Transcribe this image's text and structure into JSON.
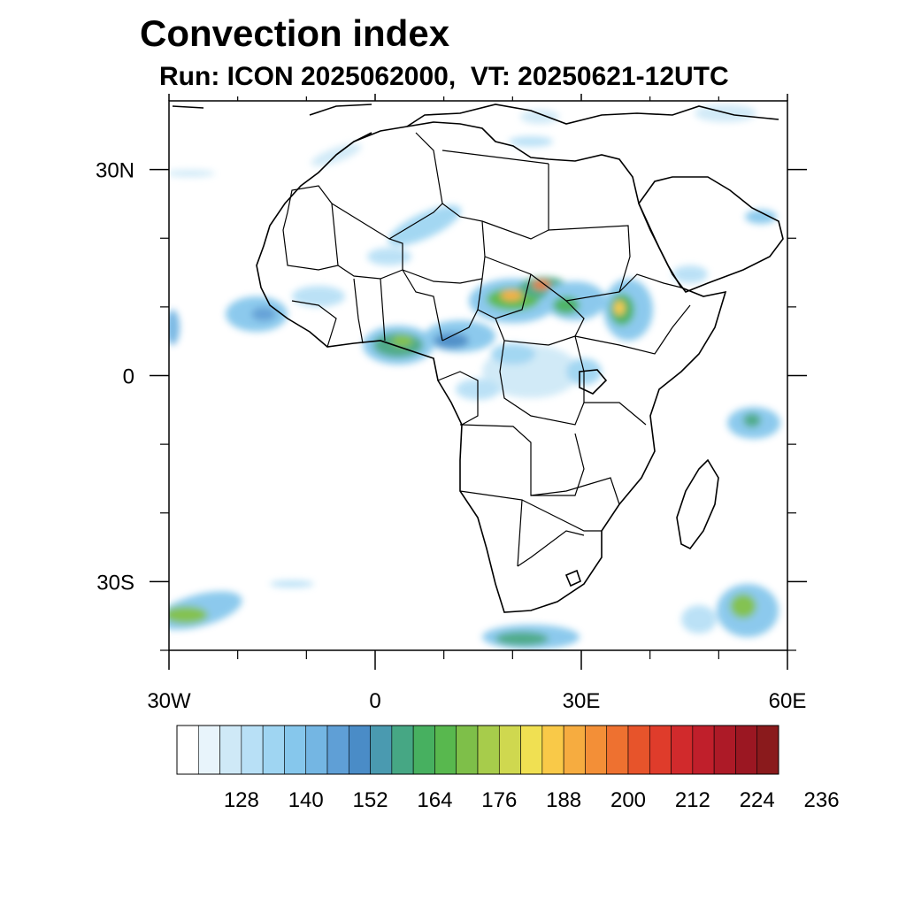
{
  "header": {
    "title": "Convection index",
    "subtitle": "Run: ICON 2025062000,  VT: 20250621-12UTC"
  },
  "map": {
    "region": "Africa",
    "lon_range": [
      -30,
      60
    ],
    "lat_range": [
      -40,
      40
    ],
    "x_ticks": [
      {
        "lon": -30,
        "label": "30W"
      },
      {
        "lon": 0,
        "label": "0"
      },
      {
        "lon": 30,
        "label": "30E"
      },
      {
        "lon": 60,
        "label": "60E"
      }
    ],
    "y_ticks": [
      {
        "lat": 30,
        "label": "30N"
      },
      {
        "lat": 0,
        "label": "0"
      },
      {
        "lat": -30,
        "label": "30S"
      }
    ],
    "minor_lon_ticks": [
      -20,
      -10,
      10,
      20,
      40,
      50
    ],
    "minor_lat_ticks": [
      20,
      10,
      -10,
      -20,
      -40
    ]
  },
  "colorbar": {
    "labels": [
      "128",
      "140",
      "152",
      "164",
      "176",
      "188",
      "200",
      "212",
      "224",
      "236"
    ],
    "colors": [
      "#ffffff",
      "#e8f4fb",
      "#cfe9f7",
      "#b8e0f6",
      "#9fd5f2",
      "#86c7ec",
      "#74b6e3",
      "#5f9fd6",
      "#4a8cc7",
      "#4a9ab0",
      "#46a784",
      "#47b060",
      "#58b84e",
      "#7ebf49",
      "#a7cc4b",
      "#cfd84f",
      "#f0e052",
      "#f9c948",
      "#f6ac40",
      "#f38f37",
      "#ee7130",
      "#e7542b",
      "#df3c2b",
      "#d12a2c",
      "#c01f2b",
      "#ad1a27",
      "#9b1722",
      "#8a1a1c"
    ]
  }
}
